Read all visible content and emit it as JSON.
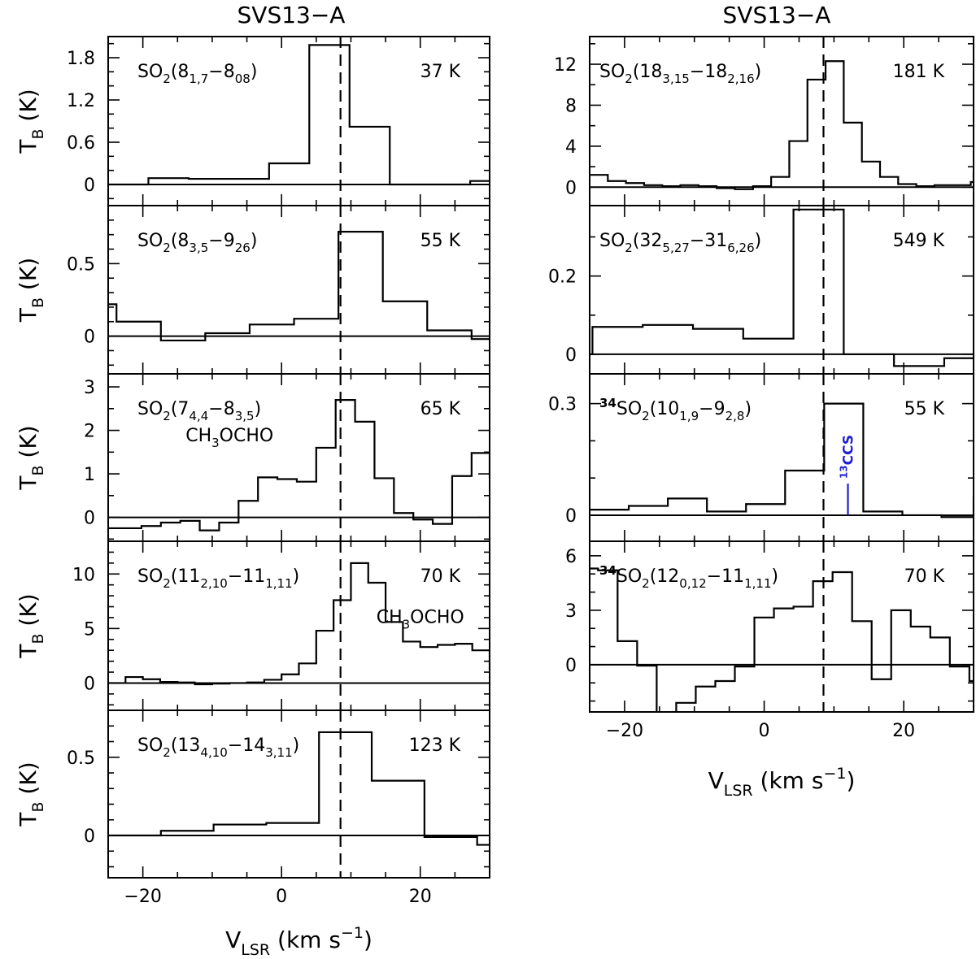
{
  "titles": [
    "SVS13−A",
    "SVS13−A"
  ],
  "x_axis_label": {
    "main": "V",
    "sub": "LSR",
    "rest": " (km s",
    "sup": "−1",
    "end": ")"
  },
  "y_axis_label": {
    "main": "T",
    "sub": "B",
    "rest": " (K)"
  },
  "chart_data": [
    {
      "type": "line",
      "style": "step",
      "column": "left",
      "label_parts": [
        [
          "SO",
          ""
        ],
        [
          "2",
          "sub"
        ],
        [
          "(8",
          ""
        ],
        [
          "1,7",
          "sub"
        ],
        [
          "−8",
          ""
        ],
        [
          "08",
          "sub"
        ],
        [
          ")",
          ""
        ]
      ],
      "temperature": "37 K",
      "xlim": [
        -25,
        30
      ],
      "ylim": [
        -0.3,
        2.1
      ],
      "yticks": [
        0,
        0.6,
        1.2,
        1.8
      ],
      "ytick_labels": [
        "0",
        "0.6",
        "1.2",
        "1.8"
      ],
      "vline": 8.5,
      "x": [
        -25,
        -19.2,
        -13.4,
        -7.6,
        -1.8,
        4.0,
        9.8,
        15.6,
        21.4,
        27.2,
        30
      ],
      "y": [
        0.0,
        0.09,
        0.08,
        0.08,
        0.3,
        1.98,
        0.82,
        0.0,
        0.0,
        0.05,
        0.04
      ]
    },
    {
      "type": "line",
      "style": "step",
      "column": "left",
      "label_parts": [
        [
          "SO",
          ""
        ],
        [
          "2",
          "sub"
        ],
        [
          "(8",
          ""
        ],
        [
          "3,5",
          "sub"
        ],
        [
          "−9",
          ""
        ],
        [
          "26",
          "sub"
        ],
        [
          ")",
          ""
        ]
      ],
      "temperature": "55 K",
      "xlim": [
        -25,
        30
      ],
      "ylim": [
        -0.26,
        0.9
      ],
      "yticks": [
        0,
        0.5
      ],
      "ytick_labels": [
        "0",
        "0.5"
      ],
      "vline": 8.5,
      "x": [
        -25,
        -23.8,
        -17.4,
        -11.0,
        -4.6,
        1.8,
        8.2,
        14.6,
        21.0,
        27.4,
        30
      ],
      "y": [
        0.22,
        0.1,
        -0.03,
        0.02,
        0.08,
        0.12,
        0.72,
        0.24,
        0.04,
        -0.02,
        -0.03
      ]
    },
    {
      "type": "line",
      "style": "step",
      "column": "left",
      "label_parts": [
        [
          "SO",
          ""
        ],
        [
          "2",
          "sub"
        ],
        [
          "(7",
          ""
        ],
        [
          "4,4",
          "sub"
        ],
        [
          "−8",
          ""
        ],
        [
          "3,5",
          "sub"
        ],
        [
          ")",
          ""
        ]
      ],
      "temperature": "65 K",
      "xlim": [
        -25,
        30
      ],
      "ylim": [
        -0.55,
        3.3
      ],
      "yticks": [
        0,
        1,
        2,
        3
      ],
      "ytick_labels": [
        "0",
        "1",
        "2",
        "3"
      ],
      "vline": 8.5,
      "x": [
        -25,
        -20.2,
        -17.4,
        -14.6,
        -11.8,
        -9.0,
        -6.2,
        -3.4,
        -0.6,
        2.2,
        5.0,
        7.8,
        10.6,
        13.4,
        16.2,
        19.0,
        21.8,
        24.6,
        27.4,
        30
      ],
      "y": [
        -0.25,
        -0.2,
        -0.12,
        -0.08,
        -0.3,
        -0.12,
        0.38,
        0.92,
        0.88,
        0.82,
        1.6,
        2.7,
        2.2,
        0.9,
        0.1,
        -0.05,
        -0.15,
        0.95,
        1.48,
        0.9
      ],
      "annotation": {
        "parts": [
          [
            "CH",
            ""
          ],
          [
            "3",
            "sub"
          ],
          [
            "OCHO",
            ""
          ]
        ],
        "x": -7.5,
        "y": 1.75
      }
    },
    {
      "type": "line",
      "style": "step",
      "column": "left",
      "label_parts": [
        [
          "SO",
          ""
        ],
        [
          "2",
          "sub"
        ],
        [
          "(11",
          ""
        ],
        [
          "2,10",
          "sub"
        ],
        [
          "−11",
          ""
        ],
        [
          "1,11",
          "sub"
        ],
        [
          ")",
          ""
        ]
      ],
      "temperature": "70 K",
      "xlim": [
        -25,
        30
      ],
      "ylim": [
        -2.5,
        13
      ],
      "yticks": [
        0,
        5,
        10
      ],
      "ytick_labels": [
        "0",
        "5",
        "10"
      ],
      "vline": 8.5,
      "x": [
        -25,
        -22.5,
        -20.0,
        -17.5,
        -15.0,
        -12.5,
        -10.0,
        -7.5,
        -5.0,
        -2.5,
        0.0,
        2.5,
        5.0,
        7.5,
        10.0,
        12.5,
        15.0,
        17.5,
        20.0,
        22.5,
        25.0,
        27.5,
        30
      ],
      "y": [
        0.0,
        0.55,
        0.35,
        0.1,
        0.05,
        -0.12,
        -0.05,
        0.0,
        0.05,
        0.3,
        0.8,
        1.8,
        4.8,
        7.6,
        11.0,
        9.2,
        5.6,
        3.8,
        3.3,
        3.5,
        3.6,
        3.0,
        1.2
      ],
      "annotation": {
        "parts": [
          [
            "CH",
            ""
          ],
          [
            "3",
            "sub"
          ],
          [
            "OCHO",
            ""
          ]
        ],
        "x": 20,
        "y": 5.5
      }
    },
    {
      "type": "line",
      "style": "step",
      "column": "left",
      "label_parts": [
        [
          "SO",
          ""
        ],
        [
          "2",
          "sub"
        ],
        [
          "(13",
          ""
        ],
        [
          "4,10",
          "sub"
        ],
        [
          "−14",
          ""
        ],
        [
          "3,11",
          "sub"
        ],
        [
          ")",
          ""
        ]
      ],
      "temperature": "123 K",
      "xlim": [
        -25,
        30
      ],
      "ylim": [
        -0.27,
        0.8
      ],
      "yticks": [
        0,
        0.5
      ],
      "ytick_labels": [
        "0",
        "0.5"
      ],
      "vline": 8.5,
      "x": [
        -25,
        -17.4,
        -9.8,
        -2.2,
        5.4,
        13.0,
        20.6,
        28.2,
        30
      ],
      "y": [
        0.0,
        0.03,
        0.07,
        0.08,
        0.66,
        0.35,
        -0.01,
        -0.06,
        -0.06
      ]
    },
    {
      "type": "line",
      "style": "step",
      "column": "right",
      "label_parts": [
        [
          "SO",
          ""
        ],
        [
          "2",
          "sub"
        ],
        [
          "(18",
          ""
        ],
        [
          "3,15",
          "sub"
        ],
        [
          "−18",
          ""
        ],
        [
          "2,16",
          "sub"
        ],
        [
          ")",
          ""
        ]
      ],
      "temperature": "181 K",
      "xlim": [
        -25,
        30
      ],
      "ylim": [
        -1.8,
        14.7
      ],
      "yticks": [
        0,
        4,
        8,
        12
      ],
      "ytick_labels": [
        "0",
        "4",
        "8",
        "12"
      ],
      "vline": 8.5,
      "x": [
        -25,
        -22.4,
        -19.8,
        -17.2,
        -14.6,
        -12.0,
        -9.4,
        -6.8,
        -4.2,
        -1.6,
        1.0,
        3.6,
        6.2,
        8.8,
        11.4,
        14.0,
        16.6,
        19.2,
        21.8,
        24.4,
        27.0,
        29.6,
        30
      ],
      "y": [
        1.2,
        0.6,
        0.4,
        0.2,
        0.1,
        0.2,
        0.1,
        -0.1,
        -0.2,
        0.1,
        1.0,
        4.5,
        10.5,
        12.3,
        6.3,
        2.5,
        1.0,
        0.3,
        0.1,
        0.2,
        0.2,
        0.5,
        1.5
      ]
    },
    {
      "type": "line",
      "style": "step",
      "column": "right",
      "label_parts": [
        [
          "SO",
          ""
        ],
        [
          "2",
          "sub"
        ],
        [
          "(32",
          ""
        ],
        [
          "5,27",
          "sub"
        ],
        [
          "−31",
          ""
        ],
        [
          "6,26",
          "sub"
        ],
        [
          ")",
          ""
        ]
      ],
      "temperature": "549 K",
      "xlim": [
        -25,
        30
      ],
      "ylim": [
        -0.05,
        0.38
      ],
      "yticks": [
        0,
        0.2
      ],
      "ytick_labels": [
        "0",
        "0.2"
      ],
      "vline": 8.5,
      "x": [
        -25,
        -24.6,
        -17.4,
        -10.2,
        -3.0,
        4.2,
        11.4,
        18.6,
        25.8,
        30
      ],
      "y": [
        0.0,
        0.07,
        0.075,
        0.065,
        0.04,
        0.37,
        0.0,
        -0.03,
        -0.01,
        -0.01
      ]
    },
    {
      "type": "line",
      "style": "step",
      "column": "right",
      "label_parts": [
        [
          "34",
          "sup"
        ],
        [
          "SO",
          ""
        ],
        [
          "2",
          "sub"
        ],
        [
          "(10",
          ""
        ],
        [
          "1,9",
          "sub"
        ],
        [
          "−9",
          ""
        ],
        [
          "2,8",
          "sub"
        ],
        [
          ")",
          ""
        ]
      ],
      "temperature": "55 K",
      "xlim": [
        -25,
        30
      ],
      "ylim": [
        -0.07,
        0.38
      ],
      "yticks": [
        0,
        0.3
      ],
      "ytick_labels": [
        "0",
        "0.3"
      ],
      "vline": 8.5,
      "x": [
        -25,
        -19.4,
        -13.8,
        -8.2,
        -2.6,
        3.0,
        8.6,
        14.2,
        19.8,
        25.4,
        30
      ],
      "y": [
        0.015,
        0.025,
        0.045,
        0.01,
        0.03,
        0.12,
        0.3,
        0.01,
        0.0,
        -0.005,
        0.05
      ],
      "marker": {
        "parts": [
          [
            "13",
            "sup"
          ],
          [
            "CCS",
            ""
          ]
        ],
        "x": 12.0,
        "y0": 0.0,
        "y1": 0.085,
        "color": "#1f1fd0"
      }
    },
    {
      "type": "line",
      "style": "step",
      "column": "right",
      "label_parts": [
        [
          "34",
          "sup"
        ],
        [
          "SO",
          ""
        ],
        [
          "2",
          "sub"
        ],
        [
          "(12",
          ""
        ],
        [
          "0,12",
          "sub"
        ],
        [
          "−11",
          ""
        ],
        [
          "1,11",
          "sub"
        ],
        [
          ")",
          ""
        ]
      ],
      "temperature": "70 K",
      "xlim": [
        -25,
        30
      ],
      "ylim": [
        -2.6,
        6.8
      ],
      "yticks": [
        0,
        3,
        6
      ],
      "ytick_labels": [
        "0",
        "3",
        "6"
      ],
      "vline": 8.5,
      "x": [
        -25,
        -23.8,
        -21.0,
        -18.2,
        -15.4,
        -12.6,
        -9.8,
        -7.0,
        -4.2,
        -1.4,
        1.4,
        4.2,
        7.0,
        9.8,
        12.6,
        15.4,
        18.2,
        21.0,
        23.8,
        26.6,
        29.4,
        30
      ],
      "y": [
        5.3,
        5.2,
        1.3,
        -0.05,
        -3.2,
        -2.1,
        -1.2,
        -0.9,
        -0.1,
        2.6,
        3.1,
        3.2,
        4.6,
        5.1,
        2.4,
        -0.8,
        3.0,
        2.1,
        1.5,
        -0.1,
        -0.9,
        -0.9
      ]
    }
  ]
}
